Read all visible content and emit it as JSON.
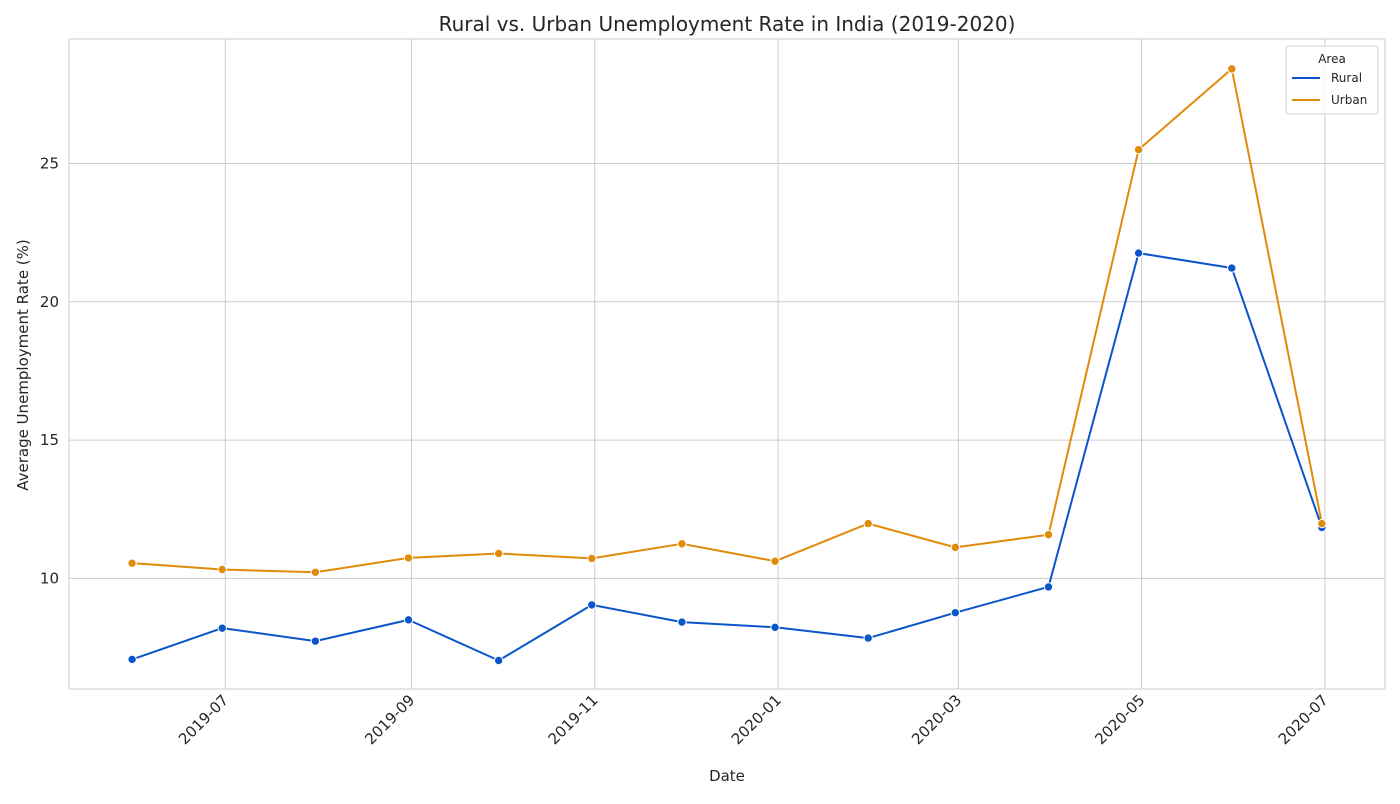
{
  "chart_data": {
    "type": "line",
    "title": "Rural vs. Urban Unemployment Rate in India (2019-2020)",
    "xlabel": "Date",
    "ylabel": "Average Unemployment Rate (%)",
    "x": [
      "2019-05-31",
      "2019-06-30",
      "2019-07-31",
      "2019-08-31",
      "2019-09-30",
      "2019-10-31",
      "2019-11-30",
      "2019-12-31",
      "2020-01-31",
      "2020-02-29",
      "2020-03-31",
      "2020-04-30",
      "2020-05-31",
      "2020-06-30"
    ],
    "x_ticks": [
      "2019-07",
      "2019-09",
      "2019-11",
      "2020-01",
      "2020-03",
      "2020-05",
      "2020-07"
    ],
    "y_ticks": [
      10,
      15,
      20,
      25
    ],
    "ylim": [
      6.0,
      29.5
    ],
    "xlim": [
      "2019-05-10",
      "2020-07-21"
    ],
    "grid": true,
    "legend_title": "Area",
    "legend_position": "top-right",
    "series": [
      {
        "name": "Rural",
        "color": "#0b55cb",
        "values": [
          7.07,
          8.2,
          7.73,
          8.5,
          7.03,
          9.04,
          8.42,
          8.23,
          7.84,
          8.76,
          9.69,
          21.76,
          21.22,
          11.84
        ]
      },
      {
        "name": "Urban",
        "color": "#e08b0a",
        "values": [
          10.55,
          10.32,
          10.22,
          10.74,
          10.9,
          10.72,
          11.25,
          10.62,
          11.98,
          11.12,
          11.58,
          25.5,
          28.42,
          11.98
        ]
      }
    ]
  }
}
